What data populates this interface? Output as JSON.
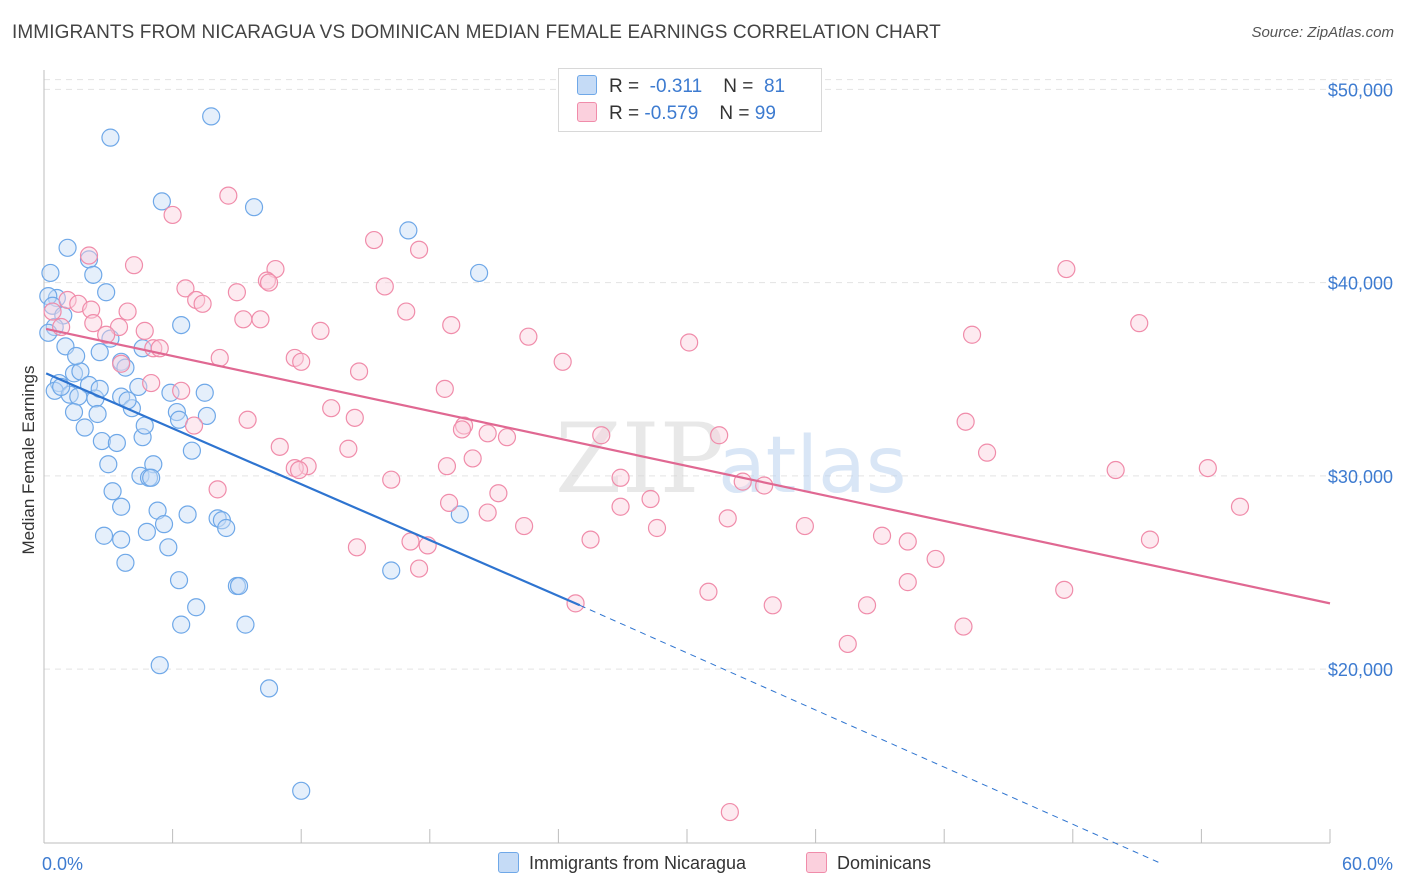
{
  "header": {
    "title": "IMMIGRANTS FROM NICARAGUA VS DOMINICAN MEDIAN FEMALE EARNINGS CORRELATION CHART",
    "source": "Source: ZipAtlas.com"
  },
  "legend": {
    "rows": [
      {
        "r_label": "R =",
        "r_value": "-0.311",
        "n_label": "N =",
        "n_value": "81",
        "color": "#6fa8e8"
      },
      {
        "r_label": "R =",
        "r_value": "-0.579",
        "n_label": "N =",
        "n_value": "99",
        "color": "#f08caa"
      }
    ]
  },
  "bottom_legend": {
    "items": [
      {
        "label": "Immigrants from Nicaragua",
        "color": "#6fa8e8"
      },
      {
        "label": "Dominicans",
        "color": "#f08caa"
      }
    ]
  },
  "chart_data": {
    "type": "scatter",
    "title": "IMMIGRANTS FROM NICARAGUA VS DOMINICAN MEDIAN FEMALE EARNINGS CORRELATION CHART",
    "ylabel": "Median Female Earnings",
    "xlabel": "",
    "xlim": [
      0,
      60
    ],
    "ylim": [
      11000,
      51000
    ],
    "x_tick_labels": [
      "0.0%",
      "60.0%"
    ],
    "y_ticks": [
      20000,
      30000,
      40000,
      50000
    ],
    "y_tick_labels": [
      "$20,000",
      "$30,000",
      "$40,000",
      "$50,000"
    ],
    "grid": "horizontal dashed",
    "watermark": "ZIPatlas",
    "series": [
      {
        "name": "Immigrants from Nicaragua",
        "color": "#6fa8e8",
        "line_color": "#2e74d0",
        "trend": {
          "x0": 0.1,
          "y0": 35300,
          "x1": 25.0,
          "y1": 23300,
          "dash_to_x": 52.0,
          "dash_to_y": 10000
        },
        "points": [
          [
            3.1,
            47500
          ],
          [
            7.8,
            48600
          ],
          [
            5.5,
            44200
          ],
          [
            9.8,
            43900
          ],
          [
            1.1,
            41800
          ],
          [
            17.0,
            42700
          ],
          [
            2.1,
            41200
          ],
          [
            2.3,
            40400
          ],
          [
            20.3,
            40500
          ],
          [
            0.3,
            40500
          ],
          [
            0.6,
            39200
          ],
          [
            0.2,
            39300
          ],
          [
            0.4,
            38800
          ],
          [
            0.9,
            38300
          ],
          [
            2.9,
            39500
          ],
          [
            0.5,
            37700
          ],
          [
            0.2,
            37400
          ],
          [
            3.1,
            37100
          ],
          [
            1.0,
            36700
          ],
          [
            4.6,
            36600
          ],
          [
            6.4,
            37800
          ],
          [
            3.6,
            35900
          ],
          [
            2.6,
            36400
          ],
          [
            3.8,
            35600
          ],
          [
            1.4,
            35300
          ],
          [
            1.7,
            35400
          ],
          [
            2.1,
            34700
          ],
          [
            0.7,
            34800
          ],
          [
            0.5,
            34400
          ],
          [
            1.2,
            34200
          ],
          [
            1.6,
            34100
          ],
          [
            2.4,
            34000
          ],
          [
            3.6,
            34100
          ],
          [
            5.9,
            34300
          ],
          [
            7.5,
            34300
          ],
          [
            4.4,
            34600
          ],
          [
            2.5,
            33200
          ],
          [
            1.4,
            33300
          ],
          [
            4.1,
            33500
          ],
          [
            6.2,
            33300
          ],
          [
            7.6,
            33100
          ],
          [
            6.3,
            32900
          ],
          [
            1.9,
            32500
          ],
          [
            2.7,
            31800
          ],
          [
            3.4,
            31700
          ],
          [
            4.6,
            32000
          ],
          [
            6.9,
            31300
          ],
          [
            5.1,
            30600
          ],
          [
            4.5,
            30000
          ],
          [
            4.9,
            29900
          ],
          [
            5.0,
            29900
          ],
          [
            3.2,
            29200
          ],
          [
            3.6,
            28400
          ],
          [
            5.3,
            28200
          ],
          [
            6.7,
            28000
          ],
          [
            8.1,
            27800
          ],
          [
            8.3,
            27700
          ],
          [
            5.6,
            27500
          ],
          [
            4.8,
            27100
          ],
          [
            8.5,
            27300
          ],
          [
            2.8,
            26900
          ],
          [
            3.6,
            26700
          ],
          [
            5.8,
            26300
          ],
          [
            3.8,
            25500
          ],
          [
            6.3,
            24600
          ],
          [
            9.0,
            24300
          ],
          [
            9.1,
            24300
          ],
          [
            16.2,
            25100
          ],
          [
            19.4,
            28000
          ],
          [
            7.1,
            23200
          ],
          [
            6.4,
            22300
          ],
          [
            9.4,
            22300
          ],
          [
            5.4,
            20200
          ],
          [
            10.5,
            19000
          ],
          [
            12.0,
            13700
          ],
          [
            0.8,
            34600
          ],
          [
            1.5,
            36200
          ],
          [
            2.6,
            34500
          ],
          [
            3.9,
            33900
          ],
          [
            4.7,
            32600
          ],
          [
            3.0,
            30600
          ]
        ]
      },
      {
        "name": "Dominicans",
        "color": "#f08caa",
        "line_color": "#e06892",
        "trend": {
          "x0": 0.1,
          "y0": 37600,
          "x1": 60.0,
          "y1": 23400
        },
        "points": [
          [
            8.6,
            44500
          ],
          [
            6.0,
            43500
          ],
          [
            15.4,
            42200
          ],
          [
            17.5,
            41700
          ],
          [
            2.1,
            41400
          ],
          [
            4.2,
            40900
          ],
          [
            10.8,
            40700
          ],
          [
            47.7,
            40700
          ],
          [
            10.4,
            40100
          ],
          [
            10.5,
            40000
          ],
          [
            6.6,
            39700
          ],
          [
            9.0,
            39500
          ],
          [
            15.9,
            39800
          ],
          [
            7.1,
            39100
          ],
          [
            7.4,
            38900
          ],
          [
            1.1,
            39100
          ],
          [
            1.6,
            38900
          ],
          [
            2.2,
            38600
          ],
          [
            0.4,
            38500
          ],
          [
            3.9,
            38500
          ],
          [
            16.9,
            38500
          ],
          [
            9.3,
            38100
          ],
          [
            10.1,
            38100
          ],
          [
            2.3,
            37900
          ],
          [
            0.8,
            37700
          ],
          [
            3.5,
            37700
          ],
          [
            4.7,
            37500
          ],
          [
            12.9,
            37500
          ],
          [
            19.0,
            37800
          ],
          [
            22.6,
            37200
          ],
          [
            30.1,
            36900
          ],
          [
            43.3,
            37300
          ],
          [
            51.1,
            37900
          ],
          [
            2.9,
            37300
          ],
          [
            5.1,
            36600
          ],
          [
            5.4,
            36600
          ],
          [
            8.2,
            36100
          ],
          [
            11.7,
            36100
          ],
          [
            12.0,
            35900
          ],
          [
            24.2,
            35900
          ],
          [
            14.7,
            35400
          ],
          [
            3.6,
            35800
          ],
          [
            5.0,
            34800
          ],
          [
            6.4,
            34400
          ],
          [
            18.7,
            34500
          ],
          [
            13.4,
            33500
          ],
          [
            14.5,
            33000
          ],
          [
            9.5,
            32900
          ],
          [
            7.0,
            32600
          ],
          [
            19.6,
            32600
          ],
          [
            19.5,
            32400
          ],
          [
            20.7,
            32200
          ],
          [
            21.6,
            32000
          ],
          [
            26.0,
            32100
          ],
          [
            31.5,
            32100
          ],
          [
            43.0,
            32800
          ],
          [
            11.0,
            31500
          ],
          [
            14.2,
            31400
          ],
          [
            12.3,
            30500
          ],
          [
            11.7,
            30400
          ],
          [
            11.9,
            30300
          ],
          [
            18.8,
            30500
          ],
          [
            20.0,
            30900
          ],
          [
            44.0,
            31200
          ],
          [
            16.2,
            29800
          ],
          [
            26.9,
            29900
          ],
          [
            32.6,
            29700
          ],
          [
            33.6,
            29500
          ],
          [
            8.1,
            29300
          ],
          [
            21.2,
            29100
          ],
          [
            28.3,
            28800
          ],
          [
            18.9,
            28600
          ],
          [
            26.9,
            28400
          ],
          [
            55.8,
            28400
          ],
          [
            20.7,
            28100
          ],
          [
            22.4,
            27400
          ],
          [
            28.6,
            27300
          ],
          [
            31.9,
            27800
          ],
          [
            35.5,
            27400
          ],
          [
            39.1,
            26900
          ],
          [
            40.3,
            26600
          ],
          [
            17.1,
            26600
          ],
          [
            17.9,
            26400
          ],
          [
            14.6,
            26300
          ],
          [
            25.5,
            26700
          ],
          [
            41.6,
            25700
          ],
          [
            51.6,
            26700
          ],
          [
            54.3,
            30400
          ],
          [
            17.5,
            25200
          ],
          [
            31.0,
            24000
          ],
          [
            40.3,
            24500
          ],
          [
            47.6,
            24100
          ],
          [
            24.8,
            23400
          ],
          [
            34.0,
            23300
          ],
          [
            38.4,
            23300
          ],
          [
            42.9,
            22200
          ],
          [
            37.5,
            21300
          ],
          [
            32.0,
            12600
          ],
          [
            50.0,
            30300
          ]
        ]
      }
    ]
  }
}
